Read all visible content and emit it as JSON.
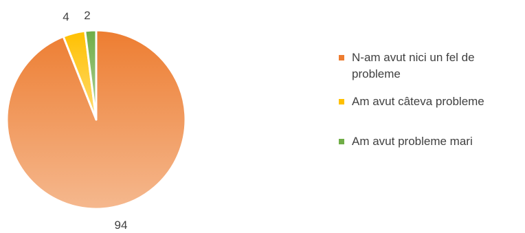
{
  "chart_data": {
    "type": "pie",
    "title": "",
    "categories": [
      "N-am avut nici un fel de probleme",
      "Am avut câteva probleme",
      "Am avut probleme mari"
    ],
    "values": [
      94,
      4,
      2
    ],
    "data_labels": [
      "94",
      "4",
      "2"
    ],
    "colors": {
      "N-am avut nici un fel de probleme": "#ED7D31",
      "Am avut câteva probleme": "#FFC000",
      "Am avut probleme mari": "#70AD47"
    },
    "style": {
      "slice_gradient": true,
      "slice_separator": "#ffffff"
    },
    "legend_position": "right"
  }
}
